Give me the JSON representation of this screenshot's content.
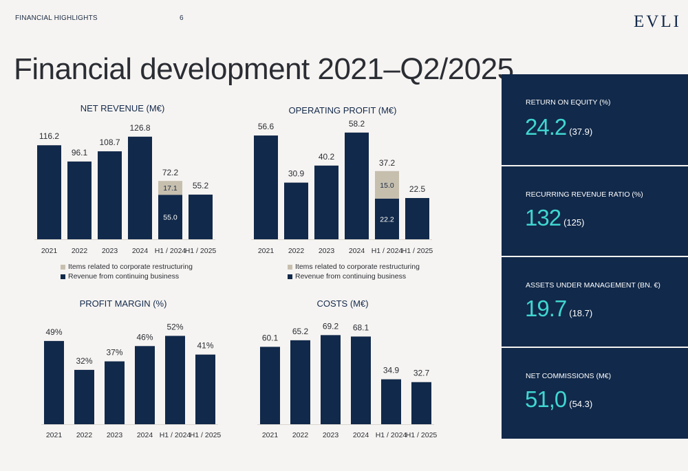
{
  "header": {
    "section": "FINANCIAL HIGHLIGHTS",
    "page_number": "6",
    "logo": "EVLI"
  },
  "title": "Financial development 2021–Q2/2025",
  "colors": {
    "bar": "#11294a",
    "restructuring": "#c7bfae",
    "kpi_bg": "#11294a",
    "kpi_value": "#3fd6d1"
  },
  "chart_data": [
    {
      "type": "bar",
      "title": "NET REVENUE (M€)",
      "categories": [
        "2021",
        "2022",
        "2023",
        "2024",
        "H1 / 2024",
        "H1 / 2025"
      ],
      "series": [
        {
          "name": "Revenue from continuing business",
          "values": [
            116.2,
            96.1,
            108.7,
            126.8,
            55.0,
            55.2
          ]
        },
        {
          "name": "Items related to corporate restructuring",
          "values": [
            null,
            null,
            null,
            null,
            17.1,
            null
          ]
        }
      ],
      "totals": [
        null,
        null,
        null,
        null,
        72.2,
        null
      ],
      "labels": [
        "116.2",
        "96.1",
        "108.7",
        "126.8",
        "55.0",
        "55.2"
      ],
      "stack_labels": [
        "",
        "",
        "",
        "",
        "17.1",
        ""
      ],
      "total_labels": [
        "",
        "",
        "",
        "",
        "72.2",
        ""
      ],
      "ylim": [
        0,
        130
      ]
    },
    {
      "type": "bar",
      "title": "OPERATING PROFIT (M€)",
      "categories": [
        "2021",
        "2022",
        "2023",
        "2024",
        "H1 / 2024",
        "H1 / 2025"
      ],
      "series": [
        {
          "name": "Revenue from continuing business",
          "values": [
            56.6,
            30.9,
            40.2,
            58.2,
            22.2,
            22.5
          ]
        },
        {
          "name": "Items related to corporate restructuring",
          "values": [
            null,
            null,
            null,
            null,
            15.0,
            null
          ]
        }
      ],
      "totals": [
        null,
        null,
        null,
        null,
        37.2,
        null
      ],
      "labels": [
        "56.6",
        "30.9",
        "40.2",
        "58.2",
        "22.2",
        "22.5"
      ],
      "stack_labels": [
        "",
        "",
        "",
        "",
        "15.0",
        ""
      ],
      "total_labels": [
        "",
        "",
        "",
        "",
        "37.2",
        ""
      ],
      "ylim": [
        0,
        60
      ]
    },
    {
      "type": "bar",
      "title": "PROFIT MARGIN (%)",
      "categories": [
        "2021",
        "2022",
        "2023",
        "2024",
        "H1 / 2024",
        "H1 / 2025"
      ],
      "series": [
        {
          "values": [
            49,
            32,
            37,
            46,
            52,
            41
          ]
        }
      ],
      "labels": [
        "49%",
        "32%",
        "37%",
        "46%",
        "52%",
        "41%"
      ],
      "ylim": [
        0,
        53
      ]
    },
    {
      "type": "bar",
      "title": "COSTS (M€)",
      "categories": [
        "2021",
        "2022",
        "2023",
        "2024",
        "H1 / 2024",
        "H1 / 2025"
      ],
      "series": [
        {
          "values": [
            60.1,
            65.2,
            69.2,
            68.1,
            34.9,
            32.7
          ]
        }
      ],
      "labels": [
        "60.1",
        "65.2",
        "69.2",
        "68.1",
        "34.9",
        "32.7"
      ],
      "ylim": [
        0,
        71
      ]
    }
  ],
  "legend": {
    "restructuring": "Items related to corporate restructuring",
    "continuing": "Revenue from continuing business"
  },
  "kpis": [
    {
      "label": "RETURN ON EQUITY (%)",
      "value": "24.2",
      "previous": "(37.9)"
    },
    {
      "label": "RECURRING REVENUE RATIO (%)",
      "value": "132",
      "previous": "(125)"
    },
    {
      "label": "ASSETS UNDER MANAGEMENT (BN. €)",
      "value": "19.7",
      "previous": "(18.7)"
    },
    {
      "label": "NET COMMISSIONS (M€)",
      "value": "51,0",
      "previous": "(54.3)"
    }
  ]
}
